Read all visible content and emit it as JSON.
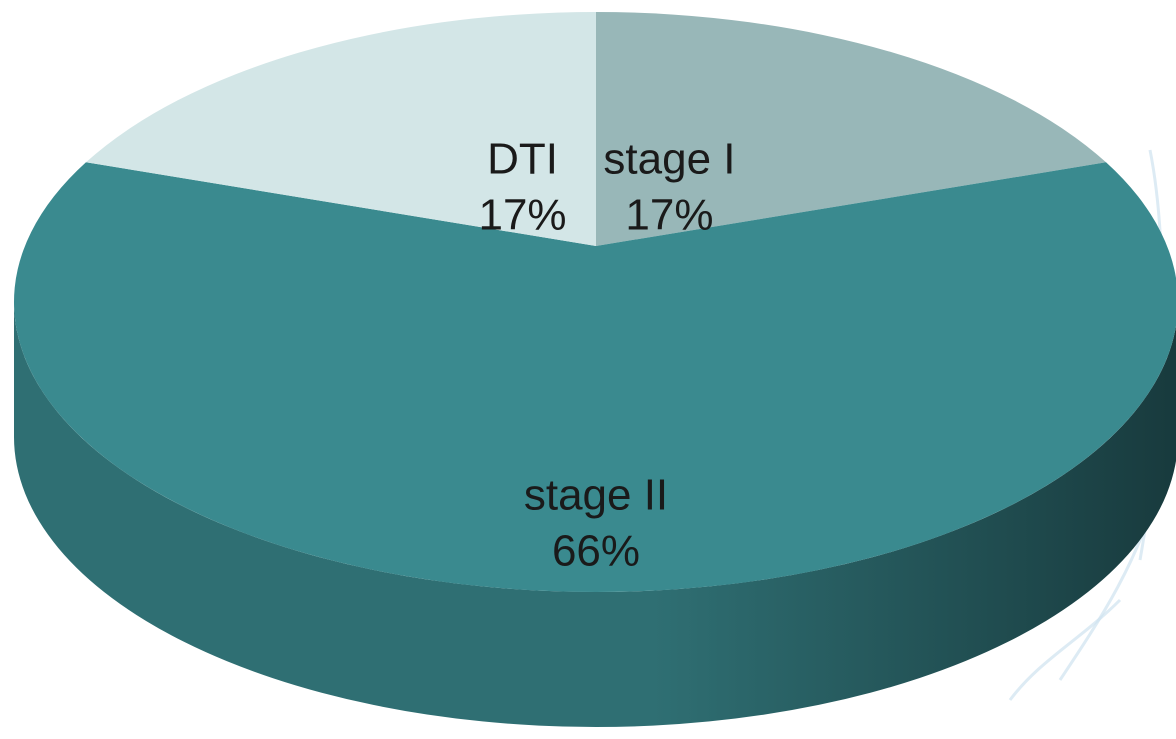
{
  "chart_data": {
    "type": "pie",
    "style": "3d",
    "slices": [
      {
        "label": "stage I",
        "value": 17,
        "value_label": "17%",
        "color": "#98b7b8"
      },
      {
        "label": "stage II",
        "value": 66,
        "value_label": "66%",
        "color": "#3a8a8f"
      },
      {
        "label": "DTI",
        "value": 17,
        "value_label": "17%",
        "color": "#d3e6e7"
      }
    ],
    "side_color_light": "#2f6f73",
    "side_color_dark": "#183a3d",
    "legend": "none"
  }
}
